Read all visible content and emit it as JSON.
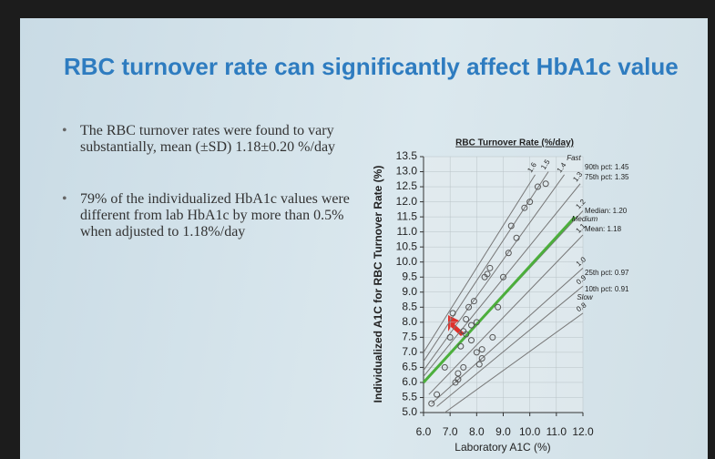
{
  "slide": {
    "title": "RBC turnover rate can significantly affect HbA1c value",
    "bullets": [
      "The RBC turnover rates were found to vary substantially, mean (±SD) 1.18±0.20 %/day",
      "79% of the individualized HbA1c values were different from lab HbA1c by more than 0.5% when adjusted to 1.18%/day"
    ]
  },
  "chart_data": {
    "type": "scatter",
    "legend_title": "RBC Turnover Rate (%/day)",
    "xlabel": "Laboratory A1C (%)",
    "ylabel": "Individualized A1C for RBC Turnover Rate (%)",
    "xlim": [
      6,
      12
    ],
    "ylim": [
      5,
      13.5
    ],
    "xticks": [
      {
        "value": 6,
        "label": "6.0"
      },
      {
        "value": 7,
        "label": "7.0"
      },
      {
        "value": 8,
        "label": "8.0"
      },
      {
        "value": 9,
        "label": "9.0"
      },
      {
        "value": 10,
        "label": "10.0"
      },
      {
        "value": 11,
        "label": "11.0"
      },
      {
        "value": 12,
        "label": "12.0"
      }
    ],
    "yticks": [
      {
        "value": 5,
        "label": "5.0"
      },
      5.5,
      {
        "value": 6,
        "label": "6.0"
      },
      6.5,
      {
        "value": 7,
        "label": "7.0"
      },
      7.5,
      {
        "value": 8,
        "label": "8.0"
      },
      8.5,
      {
        "value": 9,
        "label": "9.0"
      },
      9.5,
      {
        "value": 10,
        "label": "10.0"
      },
      10.5,
      {
        "value": 11,
        "label": "11.0"
      },
      11.5,
      {
        "value": 12,
        "label": "12.0"
      },
      12.5,
      {
        "value": 13,
        "label": "13.0"
      },
      13.5
    ],
    "grid": true,
    "point_color": "#555555",
    "x": [
      6.3,
      6.5,
      6.8,
      7.0,
      7.1,
      7.2,
      7.3,
      7.4,
      7.5,
      7.6,
      7.6,
      7.7,
      7.8,
      7.9,
      8.0,
      8.1,
      8.2,
      8.3,
      8.4,
      8.5,
      8.6,
      8.8,
      9.0,
      9.2,
      9.3,
      9.5,
      9.8,
      10.0,
      10.3,
      10.6,
      7.3,
      7.5,
      7.8,
      8.0,
      8.2
    ],
    "values": [
      5.3,
      5.6,
      6.5,
      7.5,
      8.3,
      6.0,
      6.1,
      7.2,
      7.7,
      7.6,
      8.1,
      8.5,
      7.4,
      8.7,
      7.0,
      6.6,
      6.8,
      9.5,
      9.6,
      9.8,
      7.5,
      8.5,
      9.5,
      10.3,
      11.2,
      10.8,
      11.8,
      12.0,
      12.5,
      12.6,
      6.3,
      6.5,
      7.9,
      8.0,
      7.1
    ],
    "rate_lines": [
      {
        "name": "1.6",
        "color": "#777777",
        "x": [
          6.0,
          10.2
        ],
        "values": [
          7.0,
          12.9
        ]
      },
      {
        "name": "1.5",
        "color": "#777777",
        "x": [
          6.0,
          10.7
        ],
        "values": [
          6.7,
          13.0
        ]
      },
      {
        "name": "1.4",
        "color": "#777777",
        "x": [
          6.0,
          11.3
        ],
        "values": [
          6.4,
          12.9
        ]
      },
      {
        "name": "1.3",
        "color": "#777777",
        "x": [
          6.0,
          11.9
        ],
        "values": [
          6.2,
          12.6
        ]
      },
      {
        "name": "1.2",
        "color": "#777777",
        "x": [
          6.0,
          12.0
        ],
        "values": [
          6.0,
          11.7
        ]
      },
      {
        "name": "1.1",
        "color": "#777777",
        "x": [
          6.2,
          12.0
        ],
        "values": [
          5.6,
          10.9
        ]
      },
      {
        "name": "1.0",
        "color": "#777777",
        "x": [
          6.3,
          12.0
        ],
        "values": [
          5.3,
          9.8
        ]
      },
      {
        "name": "0.9",
        "color": "#777777",
        "x": [
          6.5,
          12.0
        ],
        "values": [
          5.2,
          9.2
        ]
      },
      {
        "name": "0.8",
        "color": "#777777",
        "x": [
          6.8,
          12.0
        ],
        "values": [
          5.0,
          8.3
        ]
      }
    ],
    "mean_line": {
      "color": "#4caf3c",
      "x": [
        6.0,
        11.7
      ],
      "values": [
        6.0,
        11.5
      ]
    },
    "annotations": [
      "Fast",
      "90th pct: 1.45",
      "75th pct: 1.35",
      "Median: 1.20",
      "Medium",
      "Mean: 1.18",
      "25th pct: 0.97",
      "10th pct: 0.91",
      "Slow"
    ]
  }
}
